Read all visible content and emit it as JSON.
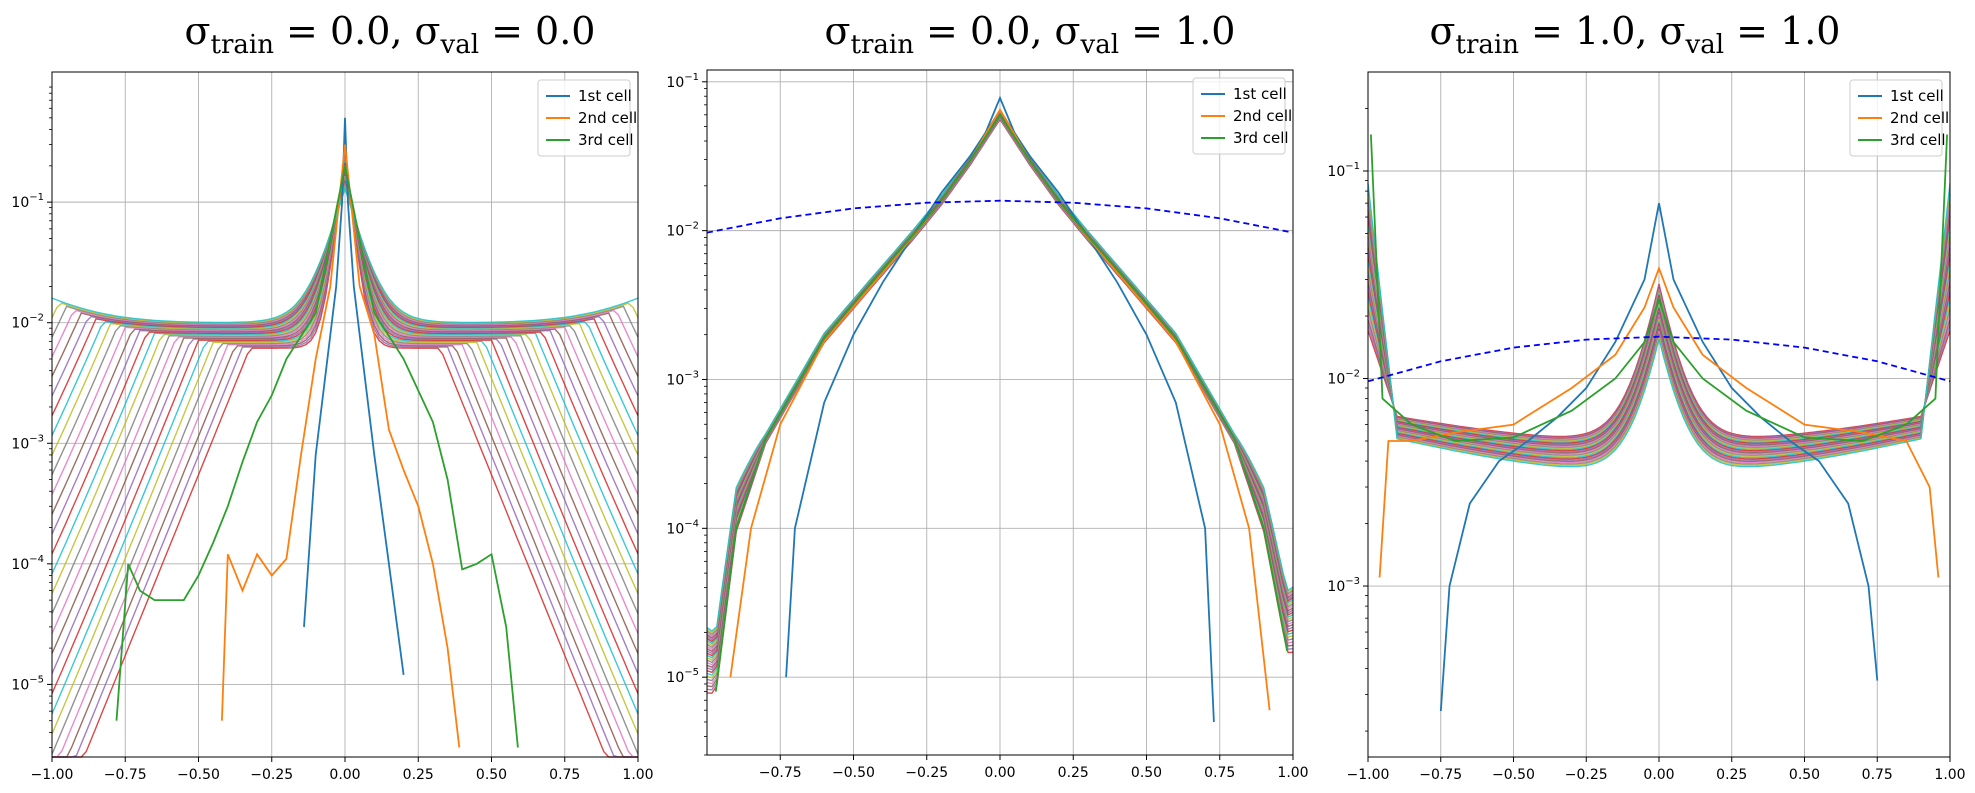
{
  "figure": {
    "panels": [
      {
        "title": {
          "sym1": "σ",
          "sub1": "train",
          "mid": " = 0.0, ",
          "sym2": "σ",
          "sub2": "val",
          "end": " = 0.0"
        }
      },
      {
        "title": {
          "sym1": "σ",
          "sub1": "train",
          "mid": " = 0.0, ",
          "sym2": "σ",
          "sub2": "val",
          "end": " = 1.0"
        }
      },
      {
        "title": {
          "sym1": "σ",
          "sub1": "train",
          "mid": " = 1.0, ",
          "sym2": "σ",
          "sub2": "val",
          "end": " = 1.0"
        }
      }
    ]
  },
  "chart_data": [
    {
      "type": "line",
      "title": "σtrain = 0.0, σval = 0.0",
      "xlim": [
        -1.0,
        1.0
      ],
      "ylim": [
        2.5e-06,
        1.2
      ],
      "yscale": "log",
      "grid": true,
      "legend": {
        "placement": "top-right",
        "entries": [
          "1st cell",
          "2nd cell",
          "3rd cell"
        ]
      },
      "x_ticks": [
        "−1.00",
        "−0.75",
        "−0.50",
        "−0.25",
        "0.00",
        "0.25",
        "0.50",
        "0.75",
        "1.00"
      ],
      "y_ticks": [
        {
          "base": "10",
          "exp": "−5"
        },
        {
          "base": "10",
          "exp": "−4"
        },
        {
          "base": "10",
          "exp": "−3"
        },
        {
          "base": "10",
          "exp": "−2"
        },
        {
          "base": "10",
          "exp": "−1"
        }
      ],
      "series": [
        {
          "name": "1st cell",
          "color": "#1f77b4",
          "x": [
            -0.14,
            -0.1,
            -0.06,
            -0.03,
            -0.01,
            0.0,
            0.01,
            0.03,
            0.06,
            0.1,
            0.15,
            0.2
          ],
          "y": [
            3e-05,
            0.0008,
            0.005,
            0.02,
            0.1,
            0.5,
            0.1,
            0.02,
            0.005,
            0.0008,
            0.0001,
            1.2e-05
          ]
        },
        {
          "name": "2nd cell",
          "color": "#ff7f0e",
          "x": [
            -0.42,
            -0.4,
            -0.35,
            -0.3,
            -0.25,
            -0.2,
            -0.15,
            -0.1,
            -0.05,
            0.0,
            0.05,
            0.1,
            0.15,
            0.2,
            0.25,
            0.3,
            0.35,
            0.39
          ],
          "y": [
            5e-06,
            0.00012,
            6e-05,
            0.00012,
            8e-05,
            0.00011,
            0.0008,
            0.005,
            0.02,
            0.3,
            0.02,
            0.008,
            0.0013,
            0.0006,
            0.0003,
            0.0001,
            2e-05,
            3e-06
          ]
        },
        {
          "name": "3rd cell",
          "color": "#2ca02c",
          "x": [
            -0.78,
            -0.74,
            -0.7,
            -0.65,
            -0.6,
            -0.55,
            -0.5,
            -0.45,
            -0.4,
            -0.35,
            -0.3,
            -0.25,
            -0.2,
            -0.1,
            0.0,
            0.1,
            0.2,
            0.3,
            0.35,
            0.4,
            0.45,
            0.5,
            0.55,
            0.59
          ],
          "y": [
            5e-06,
            0.0001,
            6e-05,
            5e-05,
            5e-05,
            5e-05,
            8e-05,
            0.00015,
            0.0003,
            0.0007,
            0.0015,
            0.0025,
            0.005,
            0.012,
            0.2,
            0.012,
            0.005,
            0.0015,
            0.0005,
            9e-05,
            0.0001,
            0.00012,
            3e-05,
            3e-06
          ]
        }
      ],
      "other_series_note": "many additional unlabeled curves"
    },
    {
      "type": "line",
      "title": "σtrain = 0.0, σval = 1.0",
      "xlim": [
        -1.0,
        1.0
      ],
      "ylim": [
        3e-06,
        0.12
      ],
      "yscale": "log",
      "grid": true,
      "legend": {
        "placement": "top-right",
        "entries": [
          "1st cell",
          "2nd cell",
          "3rd cell"
        ]
      },
      "x_ticks": [
        "−0.75",
        "−0.50",
        "−0.25",
        "0.00",
        "0.25",
        "0.50",
        "0.75",
        "1.00"
      ],
      "y_ticks": [
        {
          "base": "10",
          "exp": "−5"
        },
        {
          "base": "10",
          "exp": "−4"
        },
        {
          "base": "10",
          "exp": "−3"
        },
        {
          "base": "10",
          "exp": "−2"
        },
        {
          "base": "10",
          "exp": "−1"
        }
      ],
      "series": [
        {
          "name": "1st cell",
          "color": "#1f77b4",
          "x": [
            -0.73,
            -0.7,
            -0.6,
            -0.5,
            -0.4,
            -0.3,
            -0.2,
            -0.1,
            -0.05,
            0.0,
            0.05,
            0.1,
            0.2,
            0.3,
            0.4,
            0.5,
            0.6,
            0.7,
            0.73
          ],
          "y": [
            1e-05,
            0.0001,
            0.0007,
            0.002,
            0.0045,
            0.009,
            0.018,
            0.032,
            0.045,
            0.078,
            0.045,
            0.032,
            0.018,
            0.009,
            0.0045,
            0.002,
            0.0007,
            0.0001,
            5e-06
          ]
        },
        {
          "name": "2nd cell",
          "color": "#ff7f0e",
          "x": [
            -0.92,
            -0.85,
            -0.75,
            -0.6,
            -0.45,
            -0.3,
            -0.2,
            -0.1,
            0.0,
            0.1,
            0.2,
            0.3,
            0.45,
            0.6,
            0.75,
            0.85,
            0.92
          ],
          "y": [
            1e-05,
            0.0001,
            0.0005,
            0.0018,
            0.004,
            0.009,
            0.016,
            0.03,
            0.065,
            0.03,
            0.016,
            0.009,
            0.004,
            0.0018,
            0.0005,
            0.0001,
            6e-06
          ]
        },
        {
          "name": "3rd cell",
          "color": "#2ca02c",
          "x": [
            -0.97,
            -0.9,
            -0.8,
            -0.6,
            -0.45,
            -0.3,
            -0.2,
            -0.1,
            0.0,
            0.1,
            0.2,
            0.3,
            0.45,
            0.6,
            0.8,
            0.9,
            0.98
          ],
          "y": [
            8e-06,
            0.0001,
            0.0004,
            0.0019,
            0.0042,
            0.0092,
            0.016,
            0.03,
            0.06,
            0.03,
            0.016,
            0.0092,
            0.0042,
            0.0019,
            0.0004,
            0.0001,
            1.5e-05
          ]
        },
        {
          "name": "",
          "color": "#0000ff",
          "style": "dashed",
          "x": [
            -1.0,
            -0.75,
            -0.5,
            -0.25,
            0.0,
            0.25,
            0.5,
            0.75,
            1.0
          ],
          "y": [
            0.0097,
            0.0121,
            0.0141,
            0.0154,
            0.0159,
            0.0154,
            0.0141,
            0.0121,
            0.0097
          ]
        }
      ],
      "other_series_note": "many additional unlabeled curves"
    },
    {
      "type": "line",
      "title": "σtrain = 1.0, σval = 1.0",
      "xlim": [
        -1.0,
        1.0
      ],
      "ylim": [
        0.00015,
        0.3
      ],
      "yscale": "log",
      "grid": true,
      "legend": {
        "placement": "top-right",
        "entries": [
          "1st cell",
          "2nd cell",
          "3rd cell"
        ]
      },
      "x_ticks": [
        "−1.00",
        "−0.75",
        "−0.50",
        "−0.25",
        "0.00",
        "0.25",
        "0.50",
        "0.75",
        "1.00"
      ],
      "y_ticks": [
        {
          "base": "10",
          "exp": "−3"
        },
        {
          "base": "10",
          "exp": "−2"
        },
        {
          "base": "10",
          "exp": "−1"
        }
      ],
      "series": [
        {
          "name": "1st cell",
          "color": "#1f77b4",
          "x": [
            -0.75,
            -0.72,
            -0.65,
            -0.55,
            -0.45,
            -0.35,
            -0.25,
            -0.15,
            -0.05,
            0.0,
            0.05,
            0.15,
            0.25,
            0.35,
            0.45,
            0.55,
            0.65,
            0.72,
            0.75
          ],
          "y": [
            0.00025,
            0.001,
            0.0025,
            0.004,
            0.005,
            0.0065,
            0.009,
            0.015,
            0.03,
            0.07,
            0.03,
            0.015,
            0.009,
            0.0065,
            0.005,
            0.004,
            0.0025,
            0.001,
            0.00035
          ]
        },
        {
          "name": "2nd cell",
          "color": "#ff7f0e",
          "x": [
            -0.96,
            -0.93,
            -0.85,
            -0.7,
            -0.5,
            -0.3,
            -0.15,
            -0.05,
            0.0,
            0.05,
            0.15,
            0.3,
            0.5,
            0.7,
            0.85,
            0.93,
            0.96
          ],
          "y": [
            0.0011,
            0.005,
            0.005,
            0.0055,
            0.006,
            0.009,
            0.013,
            0.022,
            0.034,
            0.022,
            0.013,
            0.009,
            0.006,
            0.0055,
            0.005,
            0.003,
            0.0011
          ]
        },
        {
          "name": "3rd cell",
          "color": "#2ca02c",
          "x": [
            -0.99,
            -0.95,
            -0.85,
            -0.7,
            -0.5,
            -0.3,
            -0.15,
            -0.05,
            0.0,
            0.05,
            0.15,
            0.3,
            0.5,
            0.7,
            0.85,
            0.95,
            0.99
          ],
          "y": [
            0.15,
            0.008,
            0.006,
            0.005,
            0.0052,
            0.007,
            0.01,
            0.015,
            0.024,
            0.015,
            0.01,
            0.007,
            0.0052,
            0.005,
            0.006,
            0.008,
            0.15
          ]
        },
        {
          "name": "",
          "color": "#0000ff",
          "style": "dashed",
          "x": [
            -1.0,
            -0.75,
            -0.5,
            -0.25,
            0.0,
            0.25,
            0.5,
            0.75,
            1.0
          ],
          "y": [
            0.0097,
            0.0121,
            0.0141,
            0.0154,
            0.0159,
            0.0154,
            0.0141,
            0.0121,
            0.0097
          ]
        }
      ],
      "other_series_note": "many additional unlabeled curves"
    }
  ]
}
